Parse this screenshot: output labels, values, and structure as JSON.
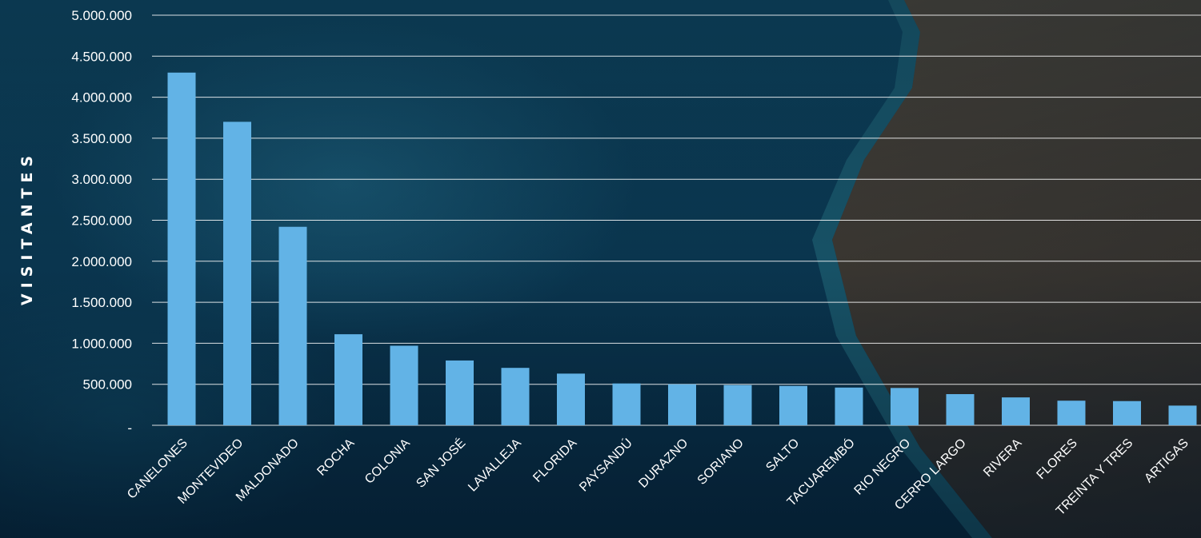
{
  "chart_data": {
    "type": "bar",
    "title": "",
    "xlabel": "",
    "ylabel": "VISITANTES",
    "ylim": [
      0,
      5000000
    ],
    "grid": true,
    "bar_color": "#62b3e6",
    "grid_color": "#ffffff",
    "yticks": [
      {
        "value": 0,
        "label": "-"
      },
      {
        "value": 500000,
        "label": "500.000"
      },
      {
        "value": 1000000,
        "label": "1.000.000"
      },
      {
        "value": 1500000,
        "label": "1.500.000"
      },
      {
        "value": 2000000,
        "label": "2.000.000"
      },
      {
        "value": 2500000,
        "label": "2.500.000"
      },
      {
        "value": 3000000,
        "label": "3.000.000"
      },
      {
        "value": 3500000,
        "label": "3.500.000"
      },
      {
        "value": 4000000,
        "label": "4.000.000"
      },
      {
        "value": 4500000,
        "label": "4.500.000"
      },
      {
        "value": 5000000,
        "label": "5.000.000"
      }
    ],
    "categories": [
      "CANELONES",
      "MONTEVIDEO",
      "MALDONADO",
      "ROCHA",
      "COLONIA",
      "SAN JOSÉ",
      "LAVALLEJA",
      "FLORIDA",
      "PAYSANDÚ",
      "DURAZNO",
      "SORIANO",
      "SALTO",
      "TACUAREMBÓ",
      "RIO NEGRO",
      "CERRO LARGO",
      "RIVERA",
      "FLORES",
      "TREINTA Y TRES",
      "ARTIGAS"
    ],
    "values": [
      4300000,
      3700000,
      2420000,
      1110000,
      970000,
      790000,
      700000,
      630000,
      510000,
      500000,
      490000,
      480000,
      460000,
      455000,
      380000,
      340000,
      300000,
      295000,
      240000
    ]
  }
}
